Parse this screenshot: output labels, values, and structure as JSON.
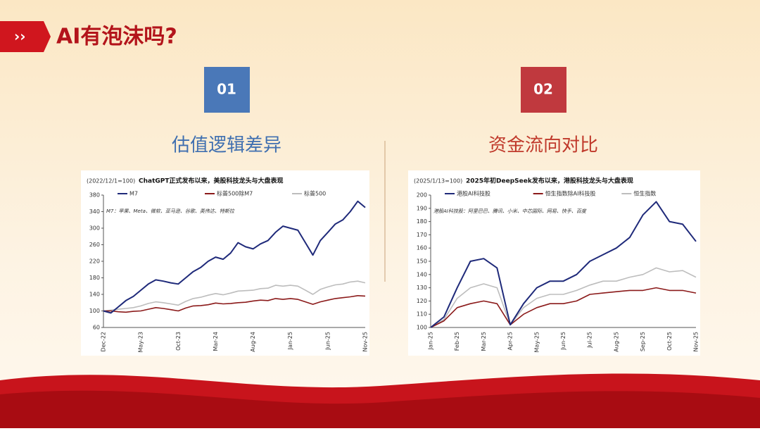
{
  "slide": {
    "title": "AI有泡沫吗?",
    "sections": [
      {
        "number": "01",
        "heading": "估值逻辑差异"
      },
      {
        "number": "02",
        "heading": "资金流向对比"
      }
    ]
  },
  "chart_data": [
    {
      "type": "line",
      "subtitle": "(2022/12/1=100)",
      "title": "ChatGPT正式发布以来，美股科技龙头与大盘表现",
      "note": "M7：苹果、Meta、微软、亚马逊、谷歌、英伟达、特斯拉",
      "categories": [
        "Dec-22",
        null,
        null,
        null,
        null,
        "May-23",
        null,
        null,
        null,
        null,
        "Oct-23",
        null,
        null,
        null,
        null,
        "Mar-24",
        null,
        null,
        null,
        null,
        "Aug-24",
        null,
        null,
        null,
        null,
        "Jan-25",
        null,
        null,
        null,
        null,
        "Jun-25",
        null,
        null,
        null,
        null,
        "Nov-25"
      ],
      "series": [
        {
          "name": "M7",
          "color": "#1f2a7a",
          "values": [
            100,
            95,
            110,
            125,
            135,
            150,
            165,
            175,
            172,
            168,
            165,
            180,
            195,
            205,
            220,
            230,
            225,
            240,
            265,
            255,
            250,
            262,
            270,
            290,
            305,
            300,
            295,
            265,
            235,
            270,
            290,
            310,
            320,
            340,
            365,
            350
          ]
        },
        {
          "name": "标普500除M7",
          "color": "#8b1a1a",
          "values": [
            100,
            100,
            98,
            97,
            99,
            100,
            104,
            108,
            106,
            103,
            100,
            107,
            112,
            113,
            115,
            119,
            117,
            118,
            120,
            121,
            124,
            126,
            125,
            130,
            128,
            130,
            128,
            122,
            116,
            122,
            126,
            130,
            132,
            134,
            137,
            136
          ]
        },
        {
          "name": "标普500",
          "color": "#bdbdbd",
          "values": [
            100,
            102,
            104,
            106,
            108,
            112,
            118,
            122,
            120,
            117,
            114,
            123,
            130,
            133,
            138,
            142,
            139,
            143,
            148,
            149,
            150,
            154,
            155,
            162,
            160,
            162,
            160,
            150,
            140,
            152,
            158,
            163,
            165,
            170,
            172,
            168
          ]
        }
      ],
      "ylim": [
        60,
        380
      ],
      "yticks": [
        60,
        100,
        140,
        180,
        220,
        260,
        300,
        340,
        380
      ]
    },
    {
      "type": "line",
      "subtitle": "(2025/1/13=100)",
      "title": "2025年初DeepSeek发布以来，港股科技龙头与大盘表现",
      "note": "港股AI科技股：阿里巴巴、腾讯、小米、中芯国际、网易、快手、百度",
      "categories": [
        "Jan-25",
        null,
        "Feb-25",
        null,
        "Mar-25",
        null,
        "Apr-25",
        null,
        "May-25",
        null,
        "Jun-25",
        null,
        "Jul-25",
        null,
        "Aug-25",
        null,
        "Sep-25",
        null,
        "Oct-25",
        null,
        "Nov-25"
      ],
      "series": [
        {
          "name": "港股AI科技股",
          "color": "#1f2a7a",
          "values": [
            100,
            108,
            130,
            150,
            152,
            145,
            102,
            118,
            130,
            135,
            135,
            140,
            150,
            155,
            160,
            168,
            185,
            195,
            180,
            178,
            165
          ]
        },
        {
          "name": "恒生指数除AI科技股",
          "color": "#8b1a1a",
          "values": [
            100,
            105,
            115,
            118,
            120,
            118,
            102,
            110,
            115,
            118,
            118,
            120,
            125,
            126,
            127,
            128,
            128,
            130,
            128,
            128,
            126
          ]
        },
        {
          "name": "恒生指数",
          "color": "#bdbdbd",
          "values": [
            100,
            106,
            122,
            130,
            133,
            130,
            102,
            115,
            122,
            125,
            125,
            128,
            132,
            135,
            135,
            138,
            140,
            145,
            142,
            143,
            138
          ]
        }
      ],
      "ylim": [
        100,
        200
      ],
      "yticks": [
        100,
        110,
        120,
        130,
        140,
        150,
        160,
        170,
        180,
        190,
        200
      ]
    }
  ]
}
